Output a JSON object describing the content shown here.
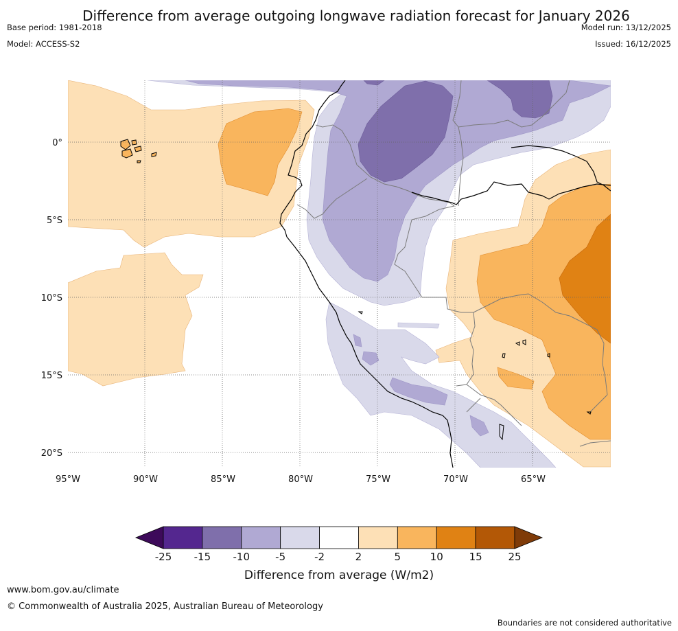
{
  "title": "Difference from average outgoing longwave radiation forecast for January 2026",
  "meta": {
    "base_period": "Base period: 1981-2018",
    "model": "Model: ACCESS-S2",
    "model_run": "Model run: 13/12/2025",
    "issued": "Issued: 16/12/2025"
  },
  "map": {
    "lon_labels": [
      "95°W",
      "90°W",
      "85°W",
      "80°W",
      "75°W",
      "70°W",
      "65°W"
    ],
    "lat_labels": [
      "0°",
      "5°S",
      "10°S",
      "15°S",
      "20°S"
    ]
  },
  "legend": {
    "title": "Difference from average (W/m2)",
    "ticks": [
      "-25",
      "-15",
      "-10",
      "-5",
      "-2",
      "2",
      "5",
      "10",
      "15",
      "25"
    ],
    "colors": [
      "#3d0a5a",
      "#54278f",
      "#7f6fab",
      "#b0a9d3",
      "#d9d9ea",
      "#ffffff",
      "#fde0b6",
      "#f9b55d",
      "#e08214",
      "#b35806",
      "#7f3b08"
    ]
  },
  "footer": {
    "url": "www.bom.gov.au/climate",
    "copyright": "© Commonwealth of Australia 2025, Australian Bureau of Meteorology",
    "note": "Boundaries are not considered authoritative"
  }
}
